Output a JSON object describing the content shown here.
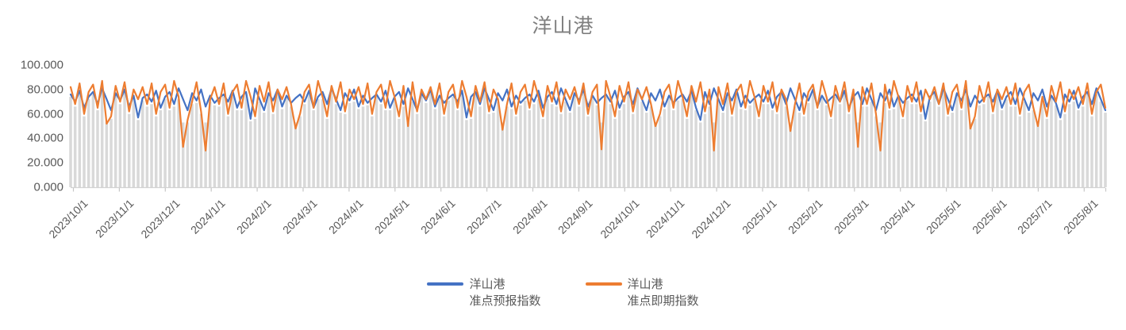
{
  "chart_data": {
    "type": "line+bar",
    "title": "洋山港",
    "xlabel": "",
    "ylabel": "",
    "ylim": [
      0,
      100
    ],
    "y_ticks": [
      0,
      20,
      40,
      60,
      80,
      100
    ],
    "y_tick_labels": [
      "0.000",
      "20.000",
      "40.000",
      "60.000",
      "80.000",
      "100.000"
    ],
    "x_tick_labels": [
      "2023/10/1",
      "2023/11/1",
      "2023/12/1",
      "2024/1/1",
      "2024/2/1",
      "2024/3/1",
      "2024/4/1",
      "2024/5/1",
      "2024/6/1",
      "2024/7/1",
      "2024/8/1",
      "2024/9/1",
      "2024/10/1",
      "2024/11/1",
      "2024/12/1",
      "2025/1/1",
      "2025/2/1",
      "2025/3/1",
      "2025/4/1",
      "2025/5/1",
      "2025/6/1",
      "2025/7/1",
      "2025/8/1"
    ],
    "grid": "off",
    "legend_position": "bottom",
    "background_columns": {
      "color": "#d9d9d9",
      "description": "dense light-gray daily columns rising from 0 and tracking just below the lower envelope of the two line series"
    },
    "axis_line_color": "#d2d2d2",
    "tick_color": "#c6c6c6",
    "axis_text_color": "#595959",
    "title_color": "#7f7f7f",
    "series": [
      {
        "name": "洋山港准点预报指数",
        "color": "#4472c4",
        "values": [
          76,
          70,
          79,
          65,
          74,
          78,
          68,
          81,
          72,
          63,
          77,
          71,
          80,
          66,
          75,
          57,
          73,
          76,
          70,
          79,
          65,
          74,
          78,
          68,
          81,
          72,
          63,
          77,
          71,
          80,
          66,
          75,
          69,
          73,
          76,
          70,
          79,
          65,
          74,
          78,
          56,
          81,
          72,
          63,
          77,
          71,
          80,
          66,
          75,
          69,
          73,
          76,
          70,
          79,
          65,
          74,
          78,
          68,
          81,
          72,
          63,
          77,
          71,
          80,
          66,
          75,
          69,
          73,
          76,
          70,
          79,
          65,
          74,
          78,
          68,
          81,
          72,
          63,
          77,
          71,
          80,
          66,
          75,
          69,
          73,
          76,
          70,
          79,
          57,
          74,
          78,
          68,
          81,
          72,
          63,
          77,
          71,
          80,
          66,
          75,
          69,
          73,
          76,
          70,
          79,
          65,
          74,
          78,
          68,
          81,
          72,
          63,
          77,
          71,
          80,
          66,
          75,
          69,
          73,
          76,
          70,
          79,
          65,
          74,
          78,
          68,
          81,
          72,
          63,
          77,
          71,
          80,
          66,
          75,
          69,
          73,
          76,
          70,
          79,
          65,
          55,
          78,
          68,
          81,
          72,
          63,
          77,
          71,
          80,
          66,
          75,
          69,
          73,
          76,
          70,
          79,
          65,
          74,
          78,
          68,
          81,
          72,
          63,
          77,
          71,
          80,
          66,
          75,
          69,
          73,
          76,
          70,
          79,
          65,
          74,
          78,
          68,
          81,
          72,
          63,
          77,
          71,
          80,
          66,
          75,
          69,
          73,
          76,
          70,
          79,
          56,
          74,
          78,
          68,
          81,
          72,
          63,
          77,
          71,
          80,
          66,
          75,
          69,
          73,
          76,
          70,
          79,
          65,
          74,
          78,
          68,
          81,
          72,
          63,
          77,
          71,
          80,
          66,
          75,
          69,
          57,
          76,
          70,
          79,
          65,
          74,
          78,
          68,
          81,
          72,
          63
        ]
      },
      {
        "name": "洋山港准点即期指数",
        "color": "#ed7d31",
        "values": [
          82,
          68,
          85,
          60,
          78,
          84,
          65,
          87,
          52,
          58,
          83,
          70,
          86,
          62,
          80,
          72,
          82,
          68,
          85,
          60,
          78,
          84,
          65,
          87,
          74,
          33,
          55,
          70,
          86,
          62,
          30,
          72,
          82,
          68,
          85,
          60,
          78,
          84,
          65,
          87,
          74,
          58,
          83,
          70,
          86,
          62,
          80,
          72,
          82,
          68,
          48,
          60,
          78,
          84,
          65,
          87,
          74,
          58,
          83,
          70,
          86,
          62,
          80,
          72,
          82,
          68,
          85,
          60,
          78,
          84,
          65,
          87,
          74,
          58,
          83,
          50,
          86,
          62,
          80,
          72,
          82,
          68,
          85,
          60,
          78,
          84,
          65,
          87,
          74,
          58,
          83,
          70,
          86,
          62,
          80,
          72,
          47,
          68,
          85,
          60,
          78,
          84,
          65,
          87,
          74,
          58,
          83,
          70,
          86,
          62,
          80,
          72,
          82,
          68,
          85,
          60,
          78,
          84,
          31,
          87,
          74,
          58,
          83,
          70,
          86,
          62,
          80,
          72,
          82,
          68,
          50,
          60,
          78,
          84,
          65,
          87,
          74,
          58,
          83,
          70,
          86,
          62,
          80,
          30,
          82,
          68,
          85,
          60,
          78,
          84,
          65,
          87,
          74,
          58,
          83,
          70,
          86,
          62,
          80,
          72,
          46,
          68,
          85,
          60,
          78,
          84,
          65,
          87,
          74,
          58,
          83,
          70,
          86,
          62,
          80,
          33,
          82,
          68,
          85,
          60,
          30,
          84,
          65,
          87,
          74,
          58,
          83,
          70,
          86,
          62,
          80,
          72,
          82,
          68,
          85,
          60,
          78,
          84,
          65,
          87,
          48,
          58,
          83,
          70,
          86,
          62,
          80,
          72,
          82,
          68,
          85,
          60,
          78,
          84,
          65,
          50,
          74,
          58,
          83,
          70,
          86,
          62,
          80,
          72,
          82,
          68,
          85,
          60,
          78,
          84,
          65
        ]
      }
    ],
    "legend": [
      {
        "line1": "洋山港",
        "line2": "准点预报指数",
        "color": "#4472c4"
      },
      {
        "line1": "洋山港",
        "line2": "准点即期指数",
        "color": "#ed7d31"
      }
    ]
  }
}
